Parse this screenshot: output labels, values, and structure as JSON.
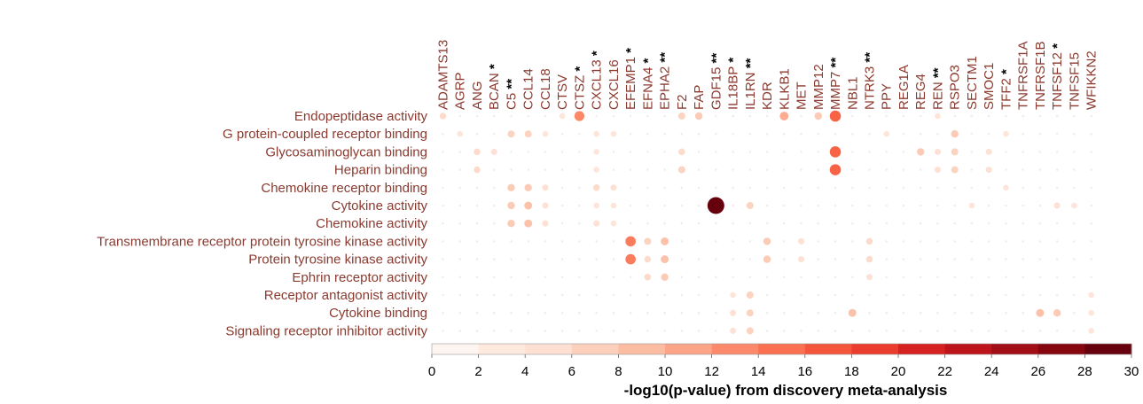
{
  "chart_data": {
    "type": "scatter",
    "columns": [
      {
        "gene": "ADAMTS13",
        "stars": ""
      },
      {
        "gene": "AGRP",
        "stars": ""
      },
      {
        "gene": "ANG",
        "stars": ""
      },
      {
        "gene": "BCAN",
        "stars": "*"
      },
      {
        "gene": "C5",
        "stars": "**"
      },
      {
        "gene": "CCL14",
        "stars": ""
      },
      {
        "gene": "CCL18",
        "stars": ""
      },
      {
        "gene": "CTSV",
        "stars": ""
      },
      {
        "gene": "CTSZ",
        "stars": "*"
      },
      {
        "gene": "CXCL13",
        "stars": "*"
      },
      {
        "gene": "CXCL16",
        "stars": ""
      },
      {
        "gene": "EFEMP1",
        "stars": "*"
      },
      {
        "gene": "EFNA4",
        "stars": "*"
      },
      {
        "gene": "EPHA2",
        "stars": "**"
      },
      {
        "gene": "F2",
        "stars": ""
      },
      {
        "gene": "FAP",
        "stars": ""
      },
      {
        "gene": "GDF15",
        "stars": "**"
      },
      {
        "gene": "IL18BP",
        "stars": "*"
      },
      {
        "gene": "IL1RN",
        "stars": "**"
      },
      {
        "gene": "KDR",
        "stars": ""
      },
      {
        "gene": "KLKB1",
        "stars": ""
      },
      {
        "gene": "MET",
        "stars": ""
      },
      {
        "gene": "MMP12",
        "stars": ""
      },
      {
        "gene": "MMP7",
        "stars": "**"
      },
      {
        "gene": "NBL1",
        "stars": ""
      },
      {
        "gene": "NTRK3",
        "stars": "**"
      },
      {
        "gene": "PPY",
        "stars": ""
      },
      {
        "gene": "REG1A",
        "stars": ""
      },
      {
        "gene": "REG4",
        "stars": ""
      },
      {
        "gene": "REN",
        "stars": "**"
      },
      {
        "gene": "RSPO3",
        "stars": ""
      },
      {
        "gene": "SECTM1",
        "stars": ""
      },
      {
        "gene": "SMOC1",
        "stars": ""
      },
      {
        "gene": "TFF2",
        "stars": "*"
      },
      {
        "gene": "TNFRSF1A",
        "stars": ""
      },
      {
        "gene": "TNFRSF1B",
        "stars": ""
      },
      {
        "gene": "TNFSF12",
        "stars": "*"
      },
      {
        "gene": "TNFSF15",
        "stars": ""
      },
      {
        "gene": "WFIKKN2",
        "stars": ""
      }
    ],
    "rows": [
      "Endopeptidase activity",
      "G protein-coupled receptor binding",
      "Glycosaminoglycan binding",
      "Heparin binding",
      "Chemokine receptor binding",
      "Cytokine activity",
      "Chemokine activity",
      "Transmembrane receptor protein tyrosine kinase activity",
      "Protein tyrosine kinase activity",
      "Ephrin receptor activity",
      "Receptor antagonist activity",
      "Cytokine binding",
      "Signaling receptor inhibitor activity"
    ],
    "points": [
      [
        0,
        0,
        5
      ],
      [
        0,
        7,
        3
      ],
      [
        0,
        8,
        13
      ],
      [
        0,
        14,
        6
      ],
      [
        0,
        15,
        7
      ],
      [
        0,
        20,
        10
      ],
      [
        0,
        22,
        7
      ],
      [
        0,
        23,
        16
      ],
      [
        0,
        29,
        3
      ],
      [
        1,
        1,
        3
      ],
      [
        1,
        4,
        6
      ],
      [
        1,
        5,
        6
      ],
      [
        1,
        6,
        3
      ],
      [
        1,
        9,
        3
      ],
      [
        1,
        10,
        3
      ],
      [
        1,
        26,
        3
      ],
      [
        1,
        30,
        7
      ],
      [
        1,
        33,
        3
      ],
      [
        2,
        2,
        5
      ],
      [
        2,
        3,
        4
      ],
      [
        2,
        9,
        3
      ],
      [
        2,
        14,
        5
      ],
      [
        2,
        23,
        16
      ],
      [
        2,
        28,
        7
      ],
      [
        2,
        29,
        4
      ],
      [
        2,
        30,
        6
      ],
      [
        2,
        32,
        4
      ],
      [
        3,
        2,
        5
      ],
      [
        3,
        9,
        3
      ],
      [
        3,
        14,
        6
      ],
      [
        3,
        23,
        16
      ],
      [
        3,
        29,
        4
      ],
      [
        3,
        30,
        6
      ],
      [
        3,
        32,
        4
      ],
      [
        4,
        4,
        7
      ],
      [
        4,
        5,
        7
      ],
      [
        4,
        6,
        4
      ],
      [
        4,
        9,
        5
      ],
      [
        4,
        10,
        4
      ],
      [
        4,
        33,
        3
      ],
      [
        5,
        4,
        7
      ],
      [
        5,
        5,
        8
      ],
      [
        5,
        6,
        4
      ],
      [
        5,
        9,
        3
      ],
      [
        5,
        10,
        3
      ],
      [
        5,
        16,
        30
      ],
      [
        5,
        18,
        6
      ],
      [
        5,
        31,
        3
      ],
      [
        5,
        36,
        4
      ],
      [
        5,
        37,
        3
      ],
      [
        6,
        4,
        7
      ],
      [
        6,
        5,
        8
      ],
      [
        6,
        6,
        4
      ],
      [
        6,
        9,
        4
      ],
      [
        6,
        10,
        3
      ],
      [
        7,
        11,
        14
      ],
      [
        7,
        12,
        6
      ],
      [
        7,
        13,
        8
      ],
      [
        7,
        19,
        7
      ],
      [
        7,
        21,
        4
      ],
      [
        7,
        25,
        5
      ],
      [
        8,
        11,
        14
      ],
      [
        8,
        12,
        5
      ],
      [
        8,
        13,
        8
      ],
      [
        8,
        19,
        7
      ],
      [
        8,
        21,
        4
      ],
      [
        8,
        25,
        5
      ],
      [
        9,
        12,
        5
      ],
      [
        9,
        13,
        7
      ],
      [
        9,
        25,
        4
      ],
      [
        10,
        17,
        3
      ],
      [
        10,
        18,
        6
      ],
      [
        10,
        38,
        3
      ],
      [
        11,
        17,
        4
      ],
      [
        11,
        18,
        6
      ],
      [
        11,
        24,
        8
      ],
      [
        11,
        35,
        8
      ],
      [
        11,
        36,
        7
      ],
      [
        11,
        38,
        3
      ],
      [
        12,
        17,
        4
      ],
      [
        12,
        18,
        6
      ],
      [
        12,
        38,
        3
      ]
    ],
    "point_fields": [
      "row_index",
      "column_index",
      "value"
    ],
    "colorbar": {
      "title": "-log10(p-value) from discovery meta-analysis",
      "min": 0,
      "max": 30,
      "ticks": [
        "0",
        "2",
        "4",
        "6",
        "8",
        "10",
        "12",
        "14",
        "16",
        "18",
        "20",
        "22",
        "24",
        "26",
        "28",
        "30"
      ],
      "colors": [
        "#fff5f0",
        "#fee9df",
        "#fde0d2",
        "#fcd0bd",
        "#fcbca2",
        "#fca487",
        "#fc8a6a",
        "#fb7050",
        "#f5553b",
        "#ea3d2d",
        "#d52221",
        "#bc141a",
        "#a10e16",
        "#85060f",
        "#67000d"
      ]
    },
    "colors": {
      "label_text": "#8b3a2f",
      "star_text": "#000000",
      "empty_dot": "#eeeeee"
    },
    "legend_position": "bottom"
  }
}
